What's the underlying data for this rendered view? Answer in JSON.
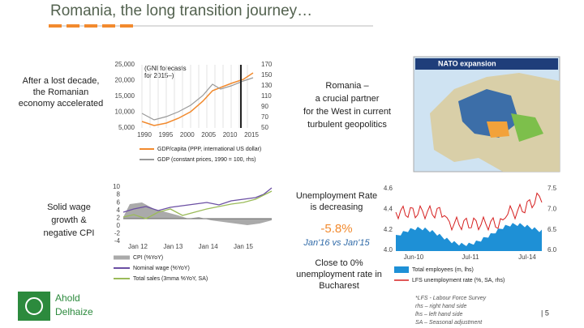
{
  "header": {
    "title": "Romania, the long transition journey…"
  },
  "blocks": [
    {
      "lines": [
        "After a lost decade,",
        "the Romanian",
        "economy accelerated"
      ]
    },
    {
      "lines": [
        "Romania –",
        "a crucial partner",
        "for the West in current",
        "turbulent geopolitics"
      ]
    },
    {
      "lines": [
        "Solid wage",
        "growth &",
        "negative CPI"
      ]
    },
    {
      "lines": [
        "Unemployment Rate",
        "is decreasing"
      ]
    },
    {
      "lines": [
        "Close to 0%",
        "unemployment rate in",
        "Bucharest"
      ]
    }
  ],
  "highlight": {
    "value": "-5.8%",
    "caption": "Jan'16 vs Jan'15"
  },
  "gdp_chart": {
    "note": [
      "(GNI forecasts",
      "for 2015–)"
    ],
    "left_ticks": [
      "25,000",
      "20,000",
      "15,000",
      "10,000",
      "5,000"
    ],
    "right_ticks": [
      "170",
      "150",
      "130",
      "110",
      "90",
      "70",
      "50"
    ],
    "x_labels": [
      "1990",
      "1995",
      "2000",
      "2005",
      "2010",
      "2015"
    ],
    "legend": [
      "GDP/capita (PPP, international US dollar)",
      "GDP (constant prices, 1990 = 100, rhs)"
    ]
  },
  "wage_chart": {
    "left_ticks": [
      "10",
      "8",
      "6",
      "4",
      "2",
      "0",
      "-2",
      "-4"
    ],
    "x_labels": [
      "Jan 12",
      "Jan 13",
      "Jan 14",
      "Jan 15"
    ],
    "legend": [
      "CPI (%YoY)",
      "Nominal wage (%YoY)",
      "Total sales (3mma %YoY, SA)"
    ]
  },
  "employment_chart": {
    "left_ticks": [
      "4.6",
      "4.4",
      "4.2",
      "4.0"
    ],
    "right_ticks": [
      "7.5",
      "7.0",
      "6.5",
      "6.0"
    ],
    "x_labels": [
      "Jun-10",
      "Jul-11",
      "Jul-14"
    ],
    "legend": [
      "Total employees (m, lhs)",
      "LFS unemployment rate (%, SA, rhs)"
    ]
  },
  "map": {
    "title": "NATO expansion"
  },
  "footnotes": [
    "*LFS - Labour Force Survey",
    "rhs – right hand side",
    "lhs – left hand side",
    "SA – Seasonal adjustment"
  ],
  "page": "| 5",
  "logo": [
    "Ahold",
    "Delhaize"
  ]
}
